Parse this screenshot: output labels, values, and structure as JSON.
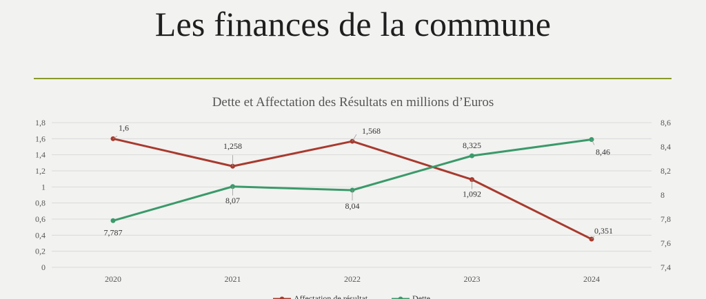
{
  "slide": {
    "title": "Les finances de la commune"
  },
  "colors": {
    "background": "#f2f2f0",
    "rule": "#8a9a2a",
    "affectation": "#a83a2e",
    "dette": "#3a9a6a",
    "grid": "#d9d9d9"
  },
  "chart_data": {
    "type": "line",
    "title": "Dette et Affectation des Résultats en millions d’Euros",
    "categories": [
      "2020",
      "2021",
      "2022",
      "2023",
      "2024"
    ],
    "series": [
      {
        "name": "Affectation de résultat",
        "axis": "left",
        "values": [
          1.6,
          1.258,
          1.568,
          1.092,
          0.351
        ],
        "labels": [
          "1,6",
          "1,258",
          "1,568",
          "1,092",
          "0,351"
        ]
      },
      {
        "name": "Dette",
        "axis": "right",
        "values": [
          7.787,
          8.07,
          8.04,
          8.325,
          8.46
        ],
        "labels": [
          "7,787",
          "8,07",
          "8,04",
          "8,325",
          "8,46"
        ]
      }
    ],
    "y_left": {
      "min": 0,
      "max": 1.8,
      "ticks": [
        "0",
        "0,2",
        "0,4",
        "0,6",
        "0,8",
        "1",
        "1,2",
        "1,4",
        "1,6",
        "1,8"
      ]
    },
    "y_right": {
      "min": 7.4,
      "max": 8.6,
      "ticks": [
        "7,4",
        "7,6",
        "7,8",
        "8",
        "8,2",
        "8,4",
        "8,6"
      ]
    },
    "grid": true,
    "legend": "bottom"
  }
}
